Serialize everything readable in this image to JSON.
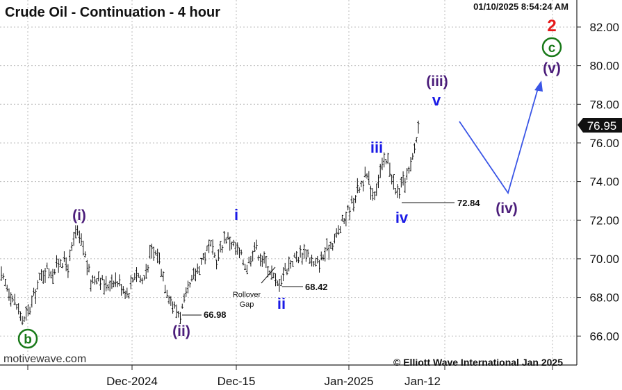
{
  "header": {
    "title": "Crude Oil - Continuation - 4 hour",
    "timestamp": "01/10/2025 8:54:24 AM"
  },
  "footer": {
    "source": "motivewave.com",
    "copyright": "© Elliott Wave International Jan 2025"
  },
  "colors": {
    "wave_purple": "#4b1d7a",
    "wave_blue": "#1a1ae6",
    "wave_red": "#e61a1a",
    "wave_green": "#1a7a1a",
    "projection_line": "#3a55e6",
    "price_bars": "#111111",
    "grid": "#bbbbbb"
  },
  "chart_data": {
    "type": "line",
    "ylim": [
      64.5,
      83.4
    ],
    "y_ticks": [
      "66.00",
      "68.00",
      "70.00",
      "72.00",
      "74.00",
      "76.00",
      "78.00",
      "80.00",
      "82.00"
    ],
    "y_tick_values": [
      66,
      68,
      70,
      72,
      74,
      76,
      78,
      80,
      82
    ],
    "x_tick_labels": [
      "Dec-2024",
      "Dec-15",
      "Jan-2025",
      "Jan-12"
    ],
    "grid": true,
    "last_price": "76.95",
    "price_path": [
      69.0,
      68.4,
      67.6,
      66.7,
      67.6,
      68.8,
      69.5,
      69.3,
      70.0,
      69.6,
      71.4,
      70.6,
      68.8,
      69.2,
      68.5,
      69.0,
      68.7,
      68.2,
      69.4,
      68.8,
      70.2,
      70.3,
      68.7,
      67.6,
      67.1,
      68.2,
      69.2,
      70.0,
      70.6,
      69.9,
      71.2,
      70.8,
      70.2,
      69.6,
      70.7,
      70.0,
      69.5,
      68.6,
      69.4,
      69.9,
      70.2,
      70.4,
      69.6,
      70.0,
      70.6,
      71.2,
      72.0,
      72.8,
      73.7,
      74.3,
      73.3,
      74.7,
      75.1,
      73.3,
      73.9,
      74.7,
      76.8
    ],
    "price_labels": [
      "66.98",
      "68.42",
      "72.84"
    ],
    "annotations": [
      "Rollover",
      "Gap"
    ],
    "waves": {
      "b": "b",
      "i_paren": "(i)",
      "ii_paren": "(ii)",
      "i": "i",
      "ii": "ii",
      "iii": "iii",
      "iv": "iv",
      "iii_paren": "(iii)",
      "v": "v",
      "iv_paren": "(iv)",
      "v_paren": "(v)",
      "c": "c",
      "two": "2"
    }
  }
}
